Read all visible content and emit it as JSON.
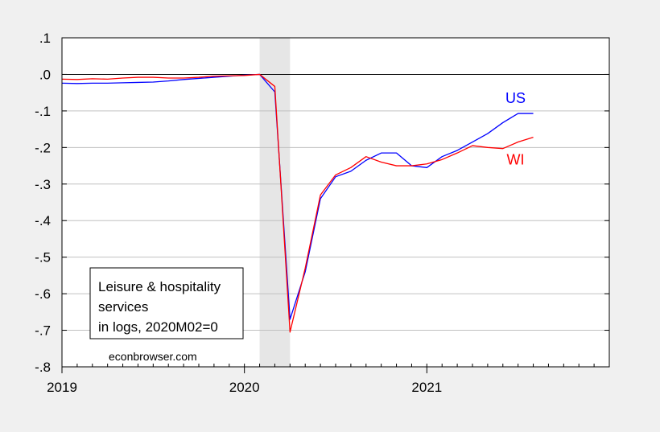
{
  "chart_data": {
    "type": "line",
    "x_unit": "month",
    "x_range": [
      "2019-01",
      "2021-12"
    ],
    "x_tick_labels": [
      {
        "label": "2019",
        "date": "2019-01"
      },
      {
        "label": "2020",
        "date": "2020-01"
      },
      {
        "label": "2021",
        "date": "2021-01"
      }
    ],
    "ylim": [
      -0.8,
      0.1
    ],
    "y_ticks": [
      0.1,
      0.0,
      -0.1,
      -0.2,
      -0.3,
      -0.4,
      -0.5,
      -0.6,
      -0.7,
      -0.8
    ],
    "y_tick_labels": [
      ".1",
      ".0",
      "-.1",
      "-.2",
      "-.3",
      "-.4",
      "-.5",
      "-.6",
      "-.7",
      "-.8"
    ],
    "grid": "horizontal",
    "zero_line": true,
    "recession_shading": {
      "start": "2020-02",
      "end": "2020-04",
      "color": "#e6e6e6"
    },
    "annotation_box": {
      "lines": [
        "Leisure & hospitality",
        "services",
        "in logs, 2020M02=0"
      ],
      "placement": "lower-left"
    },
    "source_text": "econbrowser.com",
    "series": [
      {
        "name": "US",
        "color": "#0000ff",
        "x": [
          "2019-01",
          "2019-02",
          "2019-03",
          "2019-04",
          "2019-05",
          "2019-06",
          "2019-07",
          "2019-08",
          "2019-09",
          "2019-10",
          "2019-11",
          "2019-12",
          "2020-01",
          "2020-02",
          "2020-03",
          "2020-04",
          "2020-05",
          "2020-06",
          "2020-07",
          "2020-08",
          "2020-09",
          "2020-10",
          "2020-11",
          "2020-12",
          "2021-01",
          "2021-02",
          "2021-03",
          "2021-04",
          "2021-05",
          "2021-06",
          "2021-07",
          "2021-08"
        ],
        "y": [
          -0.024,
          -0.025,
          -0.024,
          -0.024,
          -0.023,
          -0.022,
          -0.021,
          -0.018,
          -0.014,
          -0.011,
          -0.008,
          -0.005,
          -0.002,
          0.0,
          -0.048,
          -0.67,
          -0.54,
          -0.34,
          -0.28,
          -0.265,
          -0.235,
          -0.215,
          -0.215,
          -0.25,
          -0.255,
          -0.225,
          -0.208,
          -0.185,
          -0.162,
          -0.132,
          -0.107,
          -0.107
        ]
      },
      {
        "name": "WI",
        "color": "#ff0000",
        "x": [
          "2019-01",
          "2019-02",
          "2019-03",
          "2019-04",
          "2019-05",
          "2019-06",
          "2019-07",
          "2019-08",
          "2019-09",
          "2019-10",
          "2019-11",
          "2019-12",
          "2020-01",
          "2020-02",
          "2020-03",
          "2020-04",
          "2020-05",
          "2020-06",
          "2020-07",
          "2020-08",
          "2020-09",
          "2020-10",
          "2020-11",
          "2020-12",
          "2021-01",
          "2021-02",
          "2021-03",
          "2021-04",
          "2021-05",
          "2021-06",
          "2021-07",
          "2021-08"
        ],
        "y": [
          -0.013,
          -0.014,
          -0.012,
          -0.013,
          -0.01,
          -0.008,
          -0.008,
          -0.01,
          -0.01,
          -0.008,
          -0.005,
          -0.004,
          -0.003,
          0.0,
          -0.033,
          -0.705,
          -0.53,
          -0.33,
          -0.275,
          -0.255,
          -0.225,
          -0.24,
          -0.25,
          -0.25,
          -0.245,
          -0.233,
          -0.215,
          -0.195,
          -0.2,
          -0.203,
          -0.185,
          -0.172
        ]
      }
    ]
  }
}
